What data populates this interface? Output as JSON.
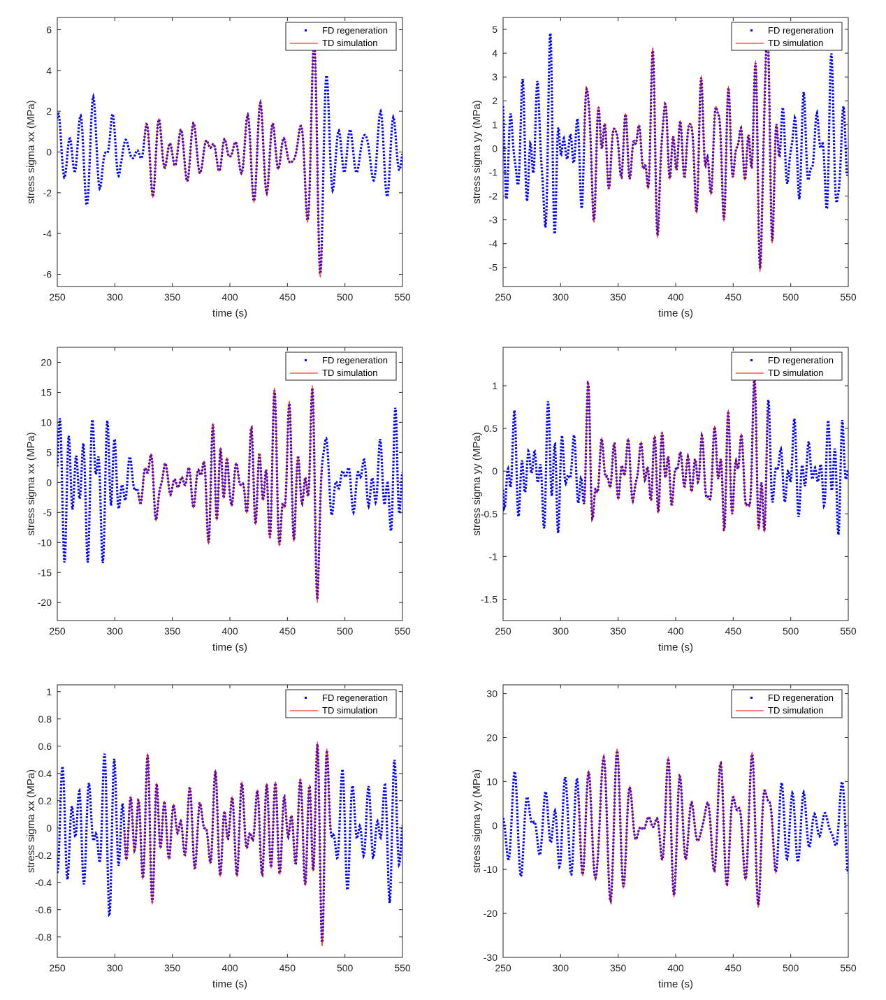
{
  "colors": {
    "fd": "#0000ff",
    "td": "#ff0000",
    "axis": "#262626"
  },
  "legend": {
    "fd_label": "FD regeneration",
    "td_label": "TD simulation",
    "placement": "top-right"
  },
  "chart_data": [
    {
      "type": "line",
      "xlabel": "time (s)",
      "ylabel": "stress sigma xx (MPa)",
      "xlim": [
        250,
        550
      ],
      "ylim": [
        -6.6,
        6.6
      ],
      "xticks": [
        250,
        300,
        350,
        400,
        450,
        500,
        550
      ],
      "yticks": [
        -6,
        -4,
        -2,
        0,
        2,
        4,
        6
      ],
      "envelope": [
        [
          250,
          2.4
        ],
        [
          260,
          2.6
        ],
        [
          270,
          2.7
        ],
        [
          280,
          3.5
        ],
        [
          290,
          4.5
        ],
        [
          297,
          5.2
        ],
        [
          305,
          1.2
        ],
        [
          315,
          0.8
        ],
        [
          325,
          3.0
        ],
        [
          333,
          3.7
        ],
        [
          345,
          2.0
        ],
        [
          355,
          1.6
        ],
        [
          365,
          1.8
        ],
        [
          375,
          2.0
        ],
        [
          385,
          4.0
        ],
        [
          393,
          3.8
        ],
        [
          400,
          1.0
        ],
        [
          410,
          1.5
        ],
        [
          420,
          2.2
        ],
        [
          430,
          2.6
        ],
        [
          440,
          3.5
        ],
        [
          450,
          3.7
        ],
        [
          462,
          3.0
        ],
        [
          470,
          4.8
        ],
        [
          478,
          5.4
        ],
        [
          485,
          3.5
        ],
        [
          492,
          2.0
        ],
        [
          500,
          2.3
        ],
        [
          510,
          2.0
        ],
        [
          520,
          2.0
        ],
        [
          530,
          2.1
        ],
        [
          540,
          2.2
        ],
        [
          550,
          1.5
        ]
      ],
      "td_range": [
        325,
        480
      ],
      "seed": 11,
      "series": [
        {
          "name": "FD regeneration",
          "style": "dotted",
          "color": "#0000ff"
        },
        {
          "name": "TD simulation",
          "style": "solid",
          "color": "#ff0000"
        }
      ]
    },
    {
      "type": "line",
      "xlabel": "time (s)",
      "ylabel": "stress sigma yy (MPa)",
      "xlim": [
        250,
        550
      ],
      "ylim": [
        -5.8,
        5.5
      ],
      "xticks": [
        250,
        300,
        350,
        400,
        450,
        500,
        550
      ],
      "yticks": [
        -5,
        -4,
        -3,
        -2,
        -1,
        0,
        1,
        2,
        3,
        4,
        5
      ],
      "envelope": [
        [
          250,
          2.5
        ],
        [
          260,
          3.0
        ],
        [
          270,
          2.6
        ],
        [
          280,
          3.6
        ],
        [
          290,
          3.5
        ],
        [
          297,
          5.0
        ],
        [
          305,
          2.0
        ],
        [
          315,
          1.8
        ],
        [
          325,
          3.0
        ],
        [
          335,
          2.2
        ],
        [
          345,
          1.5
        ],
        [
          355,
          1.4
        ],
        [
          365,
          1.6
        ],
        [
          375,
          2.5
        ],
        [
          385,
          3.0
        ],
        [
          395,
          2.4
        ],
        [
          405,
          1.5
        ],
        [
          415,
          2.0
        ],
        [
          425,
          2.5
        ],
        [
          435,
          2.7
        ],
        [
          445,
          2.2
        ],
        [
          455,
          2.0
        ],
        [
          465,
          2.6
        ],
        [
          472,
          4.0
        ],
        [
          478,
          4.8
        ],
        [
          485,
          3.2
        ],
        [
          492,
          2.5
        ],
        [
          500,
          2.4
        ],
        [
          510,
          2.0
        ],
        [
          520,
          2.2
        ],
        [
          530,
          2.0
        ],
        [
          540,
          3.8
        ],
        [
          550,
          2.0
        ]
      ],
      "td_range": [
        320,
        490
      ],
      "seed": 23,
      "series": [
        {
          "name": "FD regeneration",
          "style": "dotted",
          "color": "#0000ff"
        },
        {
          "name": "TD simulation",
          "style": "solid",
          "color": "#ff0000"
        }
      ]
    },
    {
      "type": "line",
      "xlabel": "time (s)",
      "ylabel": "stress sigma xx (MPa)",
      "xlim": [
        250,
        550
      ],
      "ylim": [
        -23,
        22.5
      ],
      "xticks": [
        250,
        300,
        350,
        400,
        450,
        500,
        550
      ],
      "yticks": [
        -20,
        -15,
        -10,
        -5,
        0,
        5,
        10,
        15,
        20
      ],
      "envelope": [
        [
          250,
          10
        ],
        [
          260,
          11
        ],
        [
          270,
          9
        ],
        [
          280,
          13
        ],
        [
          290,
          15
        ],
        [
          297,
          20
        ],
        [
          305,
          10
        ],
        [
          315,
          6
        ],
        [
          325,
          11
        ],
        [
          335,
          12
        ],
        [
          345,
          4
        ],
        [
          355,
          3
        ],
        [
          365,
          3.5
        ],
        [
          375,
          4
        ],
        [
          385,
          11
        ],
        [
          393,
          14
        ],
        [
          400,
          3
        ],
        [
          410,
          2
        ],
        [
          420,
          8
        ],
        [
          430,
          10
        ],
        [
          440,
          11
        ],
        [
          450,
          13
        ],
        [
          462,
          10
        ],
        [
          470,
          20
        ],
        [
          476,
          22
        ],
        [
          485,
          11
        ],
        [
          495,
          10
        ],
        [
          505,
          8
        ],
        [
          515,
          8
        ],
        [
          525,
          7
        ],
        [
          535,
          10
        ],
        [
          545,
          14
        ],
        [
          550,
          5
        ]
      ],
      "td_range": [
        320,
        480
      ],
      "seed": 37,
      "series": [
        {
          "name": "FD regeneration",
          "style": "dotted",
          "color": "#0000ff"
        },
        {
          "name": "TD simulation",
          "style": "solid",
          "color": "#ff0000"
        }
      ]
    },
    {
      "type": "line",
      "xlabel": "time (s)",
      "ylabel": "stress sigma yy (MPa)",
      "xlim": [
        250,
        550
      ],
      "ylim": [
        -1.75,
        1.45
      ],
      "xticks": [
        250,
        300,
        350,
        400,
        450,
        500,
        550
      ],
      "yticks": [
        -1.5,
        -1,
        -0.5,
        0,
        0.5,
        1
      ],
      "envelope": [
        [
          250,
          0.55
        ],
        [
          260,
          0.6
        ],
        [
          270,
          0.6
        ],
        [
          280,
          0.7
        ],
        [
          290,
          0.8
        ],
        [
          297,
          1.0
        ],
        [
          305,
          0.55
        ],
        [
          315,
          0.5
        ],
        [
          325,
          0.7
        ],
        [
          335,
          0.5
        ],
        [
          345,
          0.35
        ],
        [
          355,
          0.3
        ],
        [
          365,
          0.35
        ],
        [
          375,
          0.45
        ],
        [
          385,
          0.6
        ],
        [
          395,
          0.7
        ],
        [
          405,
          0.3
        ],
        [
          415,
          0.3
        ],
        [
          425,
          0.5
        ],
        [
          435,
          0.6
        ],
        [
          442,
          0.8
        ],
        [
          450,
          0.6
        ],
        [
          462,
          0.55
        ],
        [
          470,
          0.8
        ],
        [
          474,
          1.05
        ],
        [
          485,
          0.6
        ],
        [
          495,
          0.55
        ],
        [
          505,
          0.5
        ],
        [
          515,
          0.5
        ],
        [
          525,
          0.55
        ],
        [
          535,
          0.65
        ],
        [
          545,
          0.9
        ],
        [
          550,
          0.5
        ]
      ],
      "td_range": [
        320,
        480
      ],
      "seed": 41,
      "series": [
        {
          "name": "FD regeneration",
          "style": "dotted",
          "color": "#0000ff"
        },
        {
          "name": "TD simulation",
          "style": "solid",
          "color": "#ff0000"
        }
      ]
    },
    {
      "type": "line",
      "xlabel": "time (s)",
      "ylabel": "stress sigma xx (MPa)",
      "xlim": [
        250,
        550
      ],
      "ylim": [
        -0.95,
        1.05
      ],
      "xticks": [
        250,
        300,
        350,
        400,
        450,
        500,
        550
      ],
      "yticks": [
        -0.8,
        -0.6,
        -0.4,
        -0.2,
        0,
        0.2,
        0.4,
        0.6,
        0.8,
        1
      ],
      "envelope": [
        [
          250,
          0.3
        ],
        [
          260,
          0.35
        ],
        [
          270,
          0.4
        ],
        [
          280,
          0.35
        ],
        [
          290,
          0.45
        ],
        [
          297,
          0.5
        ],
        [
          305,
          0.55
        ],
        [
          315,
          0.45
        ],
        [
          325,
          0.45
        ],
        [
          335,
          0.6
        ],
        [
          345,
          0.3
        ],
        [
          355,
          0.25
        ],
        [
          365,
          0.2
        ],
        [
          375,
          0.2
        ],
        [
          385,
          0.35
        ],
        [
          393,
          0.4
        ],
        [
          400,
          0.25
        ],
        [
          410,
          0.3
        ],
        [
          420,
          0.3
        ],
        [
          430,
          0.35
        ],
        [
          440,
          0.45
        ],
        [
          450,
          0.4
        ],
        [
          462,
          0.35
        ],
        [
          472,
          0.72
        ],
        [
          482,
          0.8
        ],
        [
          490,
          0.3
        ],
        [
          500,
          0.3
        ],
        [
          510,
          0.3
        ],
        [
          520,
          0.32
        ],
        [
          530,
          0.3
        ],
        [
          540,
          0.45
        ],
        [
          550,
          0.35
        ]
      ],
      "td_range": [
        308,
        488
      ],
      "seed": 53,
      "series": [
        {
          "name": "FD regeneration",
          "style": "dotted",
          "color": "#0000ff"
        },
        {
          "name": "TD simulation",
          "style": "solid",
          "color": "#ff0000"
        }
      ]
    },
    {
      "type": "line",
      "xlabel": "time (s)",
      "ylabel": "stress sigma yy (MPa)",
      "xlim": [
        250,
        550
      ],
      "ylim": [
        -30,
        32
      ],
      "xticks": [
        250,
        300,
        350,
        400,
        450,
        500,
        550
      ],
      "yticks": [
        -30,
        -20,
        -10,
        0,
        10,
        20,
        30
      ],
      "envelope": [
        [
          250,
          8
        ],
        [
          260,
          12
        ],
        [
          270,
          14
        ],
        [
          280,
          18
        ],
        [
          290,
          22
        ],
        [
          297,
          26
        ],
        [
          305,
          15
        ],
        [
          315,
          14
        ],
        [
          325,
          18
        ],
        [
          335,
          21
        ],
        [
          345,
          12
        ],
        [
          355,
          10
        ],
        [
          365,
          9
        ],
        [
          375,
          10
        ],
        [
          385,
          14
        ],
        [
          395,
          19
        ],
        [
          405,
          12
        ],
        [
          415,
          10
        ],
        [
          425,
          10
        ],
        [
          435,
          12
        ],
        [
          445,
          15
        ],
        [
          455,
          17
        ],
        [
          465,
          16
        ],
        [
          472,
          26
        ],
        [
          480,
          30
        ],
        [
          490,
          22
        ],
        [
          500,
          14
        ],
        [
          510,
          12
        ],
        [
          520,
          10
        ],
        [
          530,
          10
        ],
        [
          540,
          13
        ],
        [
          550,
          8
        ]
      ],
      "td_range": [
        315,
        488
      ],
      "seed": 67,
      "series": [
        {
          "name": "FD regeneration",
          "style": "dotted",
          "color": "#0000ff"
        },
        {
          "name": "TD simulation",
          "style": "solid",
          "color": "#ff0000"
        }
      ]
    }
  ]
}
